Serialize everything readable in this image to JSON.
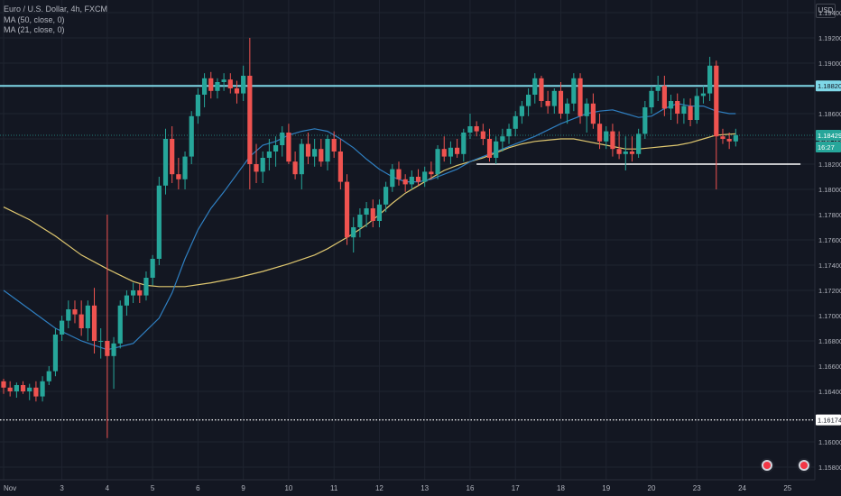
{
  "legend": {
    "symbol": "Euro / U.S. Dollar, 4h, FXCM",
    "ma50": "MA (50, close, 0)",
    "ma21": "MA (21, close, 0)"
  },
  "currency_badge": "USD",
  "colors": {
    "background": "#131722",
    "grid": "#1f2430",
    "up": "#26a69a",
    "down": "#ef5350",
    "ma50": "#e0c870",
    "ma21": "#2f7fc1",
    "resistance": "#7fd8e8",
    "support": "#ffffff"
  },
  "chart_data": {
    "type": "candlestick",
    "ylim": [
      1.157,
      1.195
    ],
    "y_ticks": [
      "1.19400",
      "1.19200",
      "1.19000",
      "1.18600",
      "1.18400",
      "1.18200",
      "1.18000",
      "1.17800",
      "1.17600",
      "1.17400",
      "1.17200",
      "1.17000",
      "1.16800",
      "1.16600",
      "1.16400",
      "1.16000",
      "1.15800"
    ],
    "x_ticks": [
      {
        "label": "Nov",
        "i": 0
      },
      {
        "label": "3",
        "i": 9
      },
      {
        "label": "4",
        "i": 16
      },
      {
        "label": "5",
        "i": 23
      },
      {
        "label": "6",
        "i": 30
      },
      {
        "label": "9",
        "i": 37
      },
      {
        "label": "10",
        "i": 44
      },
      {
        "label": "11",
        "i": 51
      },
      {
        "label": "12",
        "i": 58
      },
      {
        "label": "13",
        "i": 65
      },
      {
        "label": "16",
        "i": 72
      },
      {
        "label": "17",
        "i": 79
      },
      {
        "label": "18",
        "i": 86
      },
      {
        "label": "19",
        "i": 93
      },
      {
        "label": "20",
        "i": 100
      },
      {
        "label": "23",
        "i": 107
      },
      {
        "label": "24",
        "i": 114
      },
      {
        "label": "25",
        "i": 121
      }
    ],
    "candles": [
      [
        1.1648,
        1.165,
        1.1638,
        1.1643
      ],
      [
        1.1643,
        1.1648,
        1.1636,
        1.164
      ],
      [
        1.164,
        1.1647,
        1.1635,
        1.1645
      ],
      [
        1.1645,
        1.1648,
        1.1638,
        1.164
      ],
      [
        1.164,
        1.1646,
        1.1633,
        1.1643
      ],
      [
        1.1643,
        1.1648,
        1.1632,
        1.1636
      ],
      [
        1.1636,
        1.1652,
        1.1632,
        1.1648
      ],
      [
        1.1648,
        1.166,
        1.1645,
        1.1656
      ],
      [
        1.1656,
        1.169,
        1.1652,
        1.1685
      ],
      [
        1.1685,
        1.17,
        1.168,
        1.1696
      ],
      [
        1.1696,
        1.1712,
        1.169,
        1.1705
      ],
      [
        1.1705,
        1.1712,
        1.1694,
        1.1701
      ],
      [
        1.1701,
        1.1712,
        1.1684,
        1.169
      ],
      [
        1.169,
        1.1712,
        1.168,
        1.1708
      ],
      [
        1.1708,
        1.1722,
        1.167,
        1.168
      ],
      [
        1.168,
        1.169,
        1.1666,
        1.168
      ],
      [
        1.168,
        1.178,
        1.1603,
        1.1668
      ],
      [
        1.1668,
        1.1683,
        1.1642,
        1.1678
      ],
      [
        1.1678,
        1.1712,
        1.1674,
        1.1708
      ],
      [
        1.1708,
        1.172,
        1.17,
        1.1716
      ],
      [
        1.1716,
        1.1726,
        1.171,
        1.172
      ],
      [
        1.172,
        1.1725,
        1.171,
        1.1716
      ],
      [
        1.1716,
        1.1735,
        1.1712,
        1.173
      ],
      [
        1.173,
        1.1748,
        1.1724,
        1.1745
      ],
      [
        1.1745,
        1.181,
        1.174,
        1.1803
      ],
      [
        1.1803,
        1.1848,
        1.1796,
        1.184
      ],
      [
        1.184,
        1.185,
        1.1805,
        1.1812
      ],
      [
        1.1812,
        1.1825,
        1.18,
        1.1808
      ],
      [
        1.1808,
        1.183,
        1.18,
        1.1826
      ],
      [
        1.1826,
        1.1862,
        1.182,
        1.1858
      ],
      [
        1.1858,
        1.188,
        1.1852,
        1.1875
      ],
      [
        1.1875,
        1.1892,
        1.1865,
        1.1888
      ],
      [
        1.1888,
        1.1893,
        1.1872,
        1.1878
      ],
      [
        1.1878,
        1.1888,
        1.1872,
        1.1885
      ],
      [
        1.1885,
        1.1892,
        1.1878,
        1.1887
      ],
      [
        1.1887,
        1.1892,
        1.1876,
        1.188
      ],
      [
        1.188,
        1.1886,
        1.1868,
        1.1876
      ],
      [
        1.1876,
        1.1898,
        1.187,
        1.189
      ],
      [
        1.189,
        1.192,
        1.18,
        1.182
      ],
      [
        1.182,
        1.1836,
        1.1805,
        1.1814
      ],
      [
        1.1814,
        1.183,
        1.1805,
        1.1825
      ],
      [
        1.1825,
        1.184,
        1.1815,
        1.183
      ],
      [
        1.183,
        1.1842,
        1.1818,
        1.1835
      ],
      [
        1.1835,
        1.185,
        1.1826,
        1.1845
      ],
      [
        1.1845,
        1.1852,
        1.182,
        1.1822
      ],
      [
        1.1822,
        1.183,
        1.1808,
        1.1812
      ],
      [
        1.1812,
        1.184,
        1.18,
        1.1836
      ],
      [
        1.1836,
        1.1845,
        1.182,
        1.1826
      ],
      [
        1.1826,
        1.184,
        1.1818,
        1.1832
      ],
      [
        1.1832,
        1.184,
        1.1818,
        1.1822
      ],
      [
        1.1822,
        1.1843,
        1.1815,
        1.184
      ],
      [
        1.184,
        1.1846,
        1.1825,
        1.183
      ],
      [
        1.183,
        1.184,
        1.18,
        1.1806
      ],
      [
        1.1806,
        1.1812,
        1.1756,
        1.1762
      ],
      [
        1.1762,
        1.1778,
        1.175,
        1.177
      ],
      [
        1.177,
        1.1785,
        1.1762,
        1.178
      ],
      [
        1.178,
        1.179,
        1.177,
        1.1785
      ],
      [
        1.1785,
        1.1792,
        1.177,
        1.1775
      ],
      [
        1.1775,
        1.1792,
        1.177,
        1.1788
      ],
      [
        1.1788,
        1.1806,
        1.1782,
        1.1802
      ],
      [
        1.1802,
        1.182,
        1.1798,
        1.1816
      ],
      [
        1.1816,
        1.1822,
        1.1803,
        1.1808
      ],
      [
        1.1808,
        1.1812,
        1.1798,
        1.1804
      ],
      [
        1.1804,
        1.1815,
        1.18,
        1.181
      ],
      [
        1.181,
        1.1816,
        1.1803,
        1.1806
      ],
      [
        1.1806,
        1.1818,
        1.1802,
        1.1814
      ],
      [
        1.1814,
        1.1822,
        1.1808,
        1.1812
      ],
      [
        1.1812,
        1.1835,
        1.1808,
        1.1832
      ],
      [
        1.1832,
        1.1842,
        1.1822,
        1.1826
      ],
      [
        1.1826,
        1.1838,
        1.182,
        1.1833
      ],
      [
        1.1833,
        1.184,
        1.1825,
        1.1828
      ],
      [
        1.1828,
        1.1848,
        1.1822,
        1.1845
      ],
      [
        1.1845,
        1.186,
        1.184,
        1.185
      ],
      [
        1.185,
        1.1854,
        1.1842,
        1.1846
      ],
      [
        1.1846,
        1.1852,
        1.1835,
        1.184
      ],
      [
        1.184,
        1.1848,
        1.1822,
        1.1825
      ],
      [
        1.1825,
        1.1842,
        1.182,
        1.1838
      ],
      [
        1.1838,
        1.1848,
        1.183,
        1.1842
      ],
      [
        1.1842,
        1.1852,
        1.1836,
        1.1848
      ],
      [
        1.1848,
        1.1862,
        1.1842,
        1.1858
      ],
      [
        1.1858,
        1.187,
        1.1852,
        1.1866
      ],
      [
        1.1866,
        1.188,
        1.1858,
        1.1875
      ],
      [
        1.1875,
        1.1892,
        1.1868,
        1.1888
      ],
      [
        1.1888,
        1.189,
        1.1865,
        1.187
      ],
      [
        1.187,
        1.1878,
        1.186,
        1.1866
      ],
      [
        1.1866,
        1.188,
        1.186,
        1.1878
      ],
      [
        1.1878,
        1.1885,
        1.1856,
        1.186
      ],
      [
        1.186,
        1.1872,
        1.1852,
        1.1868
      ],
      [
        1.1868,
        1.1892,
        1.1862,
        1.1888
      ],
      [
        1.1888,
        1.1892,
        1.1852,
        1.1858
      ],
      [
        1.1858,
        1.1872,
        1.1845,
        1.1868
      ],
      [
        1.1868,
        1.1876,
        1.1848,
        1.1852
      ],
      [
        1.1852,
        1.186,
        1.1832,
        1.1838
      ],
      [
        1.1838,
        1.185,
        1.1832,
        1.1846
      ],
      [
        1.1846,
        1.1852,
        1.1826,
        1.1832
      ],
      [
        1.1832,
        1.1846,
        1.1824,
        1.1828
      ],
      [
        1.1828,
        1.1842,
        1.1815,
        1.183
      ],
      [
        1.183,
        1.1842,
        1.1822,
        1.1828
      ],
      [
        1.1828,
        1.1848,
        1.1825,
        1.1844
      ],
      [
        1.1844,
        1.187,
        1.184,
        1.1865
      ],
      [
        1.1865,
        1.1882,
        1.186,
        1.1878
      ],
      [
        1.1878,
        1.189,
        1.187,
        1.1882
      ],
      [
        1.1882,
        1.189,
        1.1858,
        1.1864
      ],
      [
        1.1864,
        1.1875,
        1.1855,
        1.187
      ],
      [
        1.187,
        1.1876,
        1.1852,
        1.186
      ],
      [
        1.186,
        1.1872,
        1.1852,
        1.1866
      ],
      [
        1.1866,
        1.1872,
        1.185,
        1.1855
      ],
      [
        1.1855,
        1.188,
        1.1852,
        1.1874
      ],
      [
        1.1874,
        1.1882,
        1.1868,
        1.1876
      ],
      [
        1.1876,
        1.1905,
        1.187,
        1.1898
      ],
      [
        1.1898,
        1.1902,
        1.18,
        1.1842
      ],
      [
        1.1842,
        1.1848,
        1.1836,
        1.184
      ],
      [
        1.184,
        1.1845,
        1.1832,
        1.1838
      ],
      [
        1.1838,
        1.1848,
        1.1834,
        1.1843
      ]
    ],
    "ma21": [
      [
        0,
        1.172
      ],
      [
        4,
        1.1705
      ],
      [
        8,
        1.169
      ],
      [
        12,
        1.168
      ],
      [
        16,
        1.1673
      ],
      [
        20,
        1.1678
      ],
      [
        24,
        1.1698
      ],
      [
        26,
        1.1718
      ],
      [
        28,
        1.1745
      ],
      [
        30,
        1.1768
      ],
      [
        32,
        1.1785
      ],
      [
        34,
        1.1798
      ],
      [
        36,
        1.1812
      ],
      [
        38,
        1.1826
      ],
      [
        40,
        1.1835
      ],
      [
        42,
        1.1838
      ],
      [
        44,
        1.1843
      ],
      [
        46,
        1.1846
      ],
      [
        48,
        1.1848
      ],
      [
        50,
        1.1846
      ],
      [
        52,
        1.184
      ],
      [
        54,
        1.1833
      ],
      [
        56,
        1.1824
      ],
      [
        58,
        1.1816
      ],
      [
        60,
        1.181
      ],
      [
        62,
        1.1806
      ],
      [
        64,
        1.1806
      ],
      [
        66,
        1.1808
      ],
      [
        68,
        1.1812
      ],
      [
        70,
        1.1816
      ],
      [
        72,
        1.1822
      ],
      [
        74,
        1.1826
      ],
      [
        76,
        1.183
      ],
      [
        78,
        1.1834
      ],
      [
        80,
        1.1838
      ],
      [
        82,
        1.1842
      ],
      [
        84,
        1.1847
      ],
      [
        86,
        1.1852
      ],
      [
        88,
        1.1856
      ],
      [
        90,
        1.186
      ],
      [
        92,
        1.1862
      ],
      [
        94,
        1.1863
      ],
      [
        96,
        1.186
      ],
      [
        98,
        1.1857
      ],
      [
        100,
        1.1858
      ],
      [
        102,
        1.1864
      ],
      [
        104,
        1.1868
      ],
      [
        106,
        1.1866
      ],
      [
        108,
        1.1866
      ],
      [
        110,
        1.1862
      ],
      [
        112,
        1.186
      ],
      [
        113,
        1.186
      ]
    ],
    "ma50": [
      [
        0,
        1.1786
      ],
      [
        4,
        1.1776
      ],
      [
        8,
        1.1763
      ],
      [
        12,
        1.1748
      ],
      [
        16,
        1.1737
      ],
      [
        20,
        1.1727
      ],
      [
        22,
        1.1724
      ],
      [
        24,
        1.1723
      ],
      [
        28,
        1.1723
      ],
      [
        32,
        1.1726
      ],
      [
        36,
        1.173
      ],
      [
        40,
        1.1735
      ],
      [
        44,
        1.1741
      ],
      [
        48,
        1.1748
      ],
      [
        50,
        1.1753
      ],
      [
        52,
        1.1759
      ],
      [
        54,
        1.1765
      ],
      [
        56,
        1.1772
      ],
      [
        58,
        1.178
      ],
      [
        60,
        1.1789
      ],
      [
        62,
        1.1797
      ],
      [
        64,
        1.1803
      ],
      [
        66,
        1.1809
      ],
      [
        68,
        1.1815
      ],
      [
        70,
        1.1819
      ],
      [
        72,
        1.1822
      ],
      [
        74,
        1.1825
      ],
      [
        76,
        1.1829
      ],
      [
        78,
        1.1833
      ],
      [
        80,
        1.1836
      ],
      [
        82,
        1.1838
      ],
      [
        84,
        1.1839
      ],
      [
        86,
        1.184
      ],
      [
        88,
        1.184
      ],
      [
        90,
        1.1838
      ],
      [
        92,
        1.1836
      ],
      [
        94,
        1.1834
      ],
      [
        96,
        1.1832
      ],
      [
        98,
        1.1832
      ],
      [
        100,
        1.1833
      ],
      [
        102,
        1.1834
      ],
      [
        104,
        1.1835
      ],
      [
        106,
        1.1837
      ],
      [
        108,
        1.184
      ],
      [
        110,
        1.1843
      ],
      [
        113,
        1.1844
      ]
    ],
    "resistance": {
      "y": 1.1882,
      "label": "1.18820"
    },
    "support_line": {
      "y": 1.182,
      "i_start": 73,
      "i_end": 123
    },
    "dotted_level": {
      "y": 1.16174,
      "label": "1.16174"
    },
    "last_price": {
      "y": 1.18429,
      "label": "1.18429",
      "countdown": "16:27"
    }
  }
}
